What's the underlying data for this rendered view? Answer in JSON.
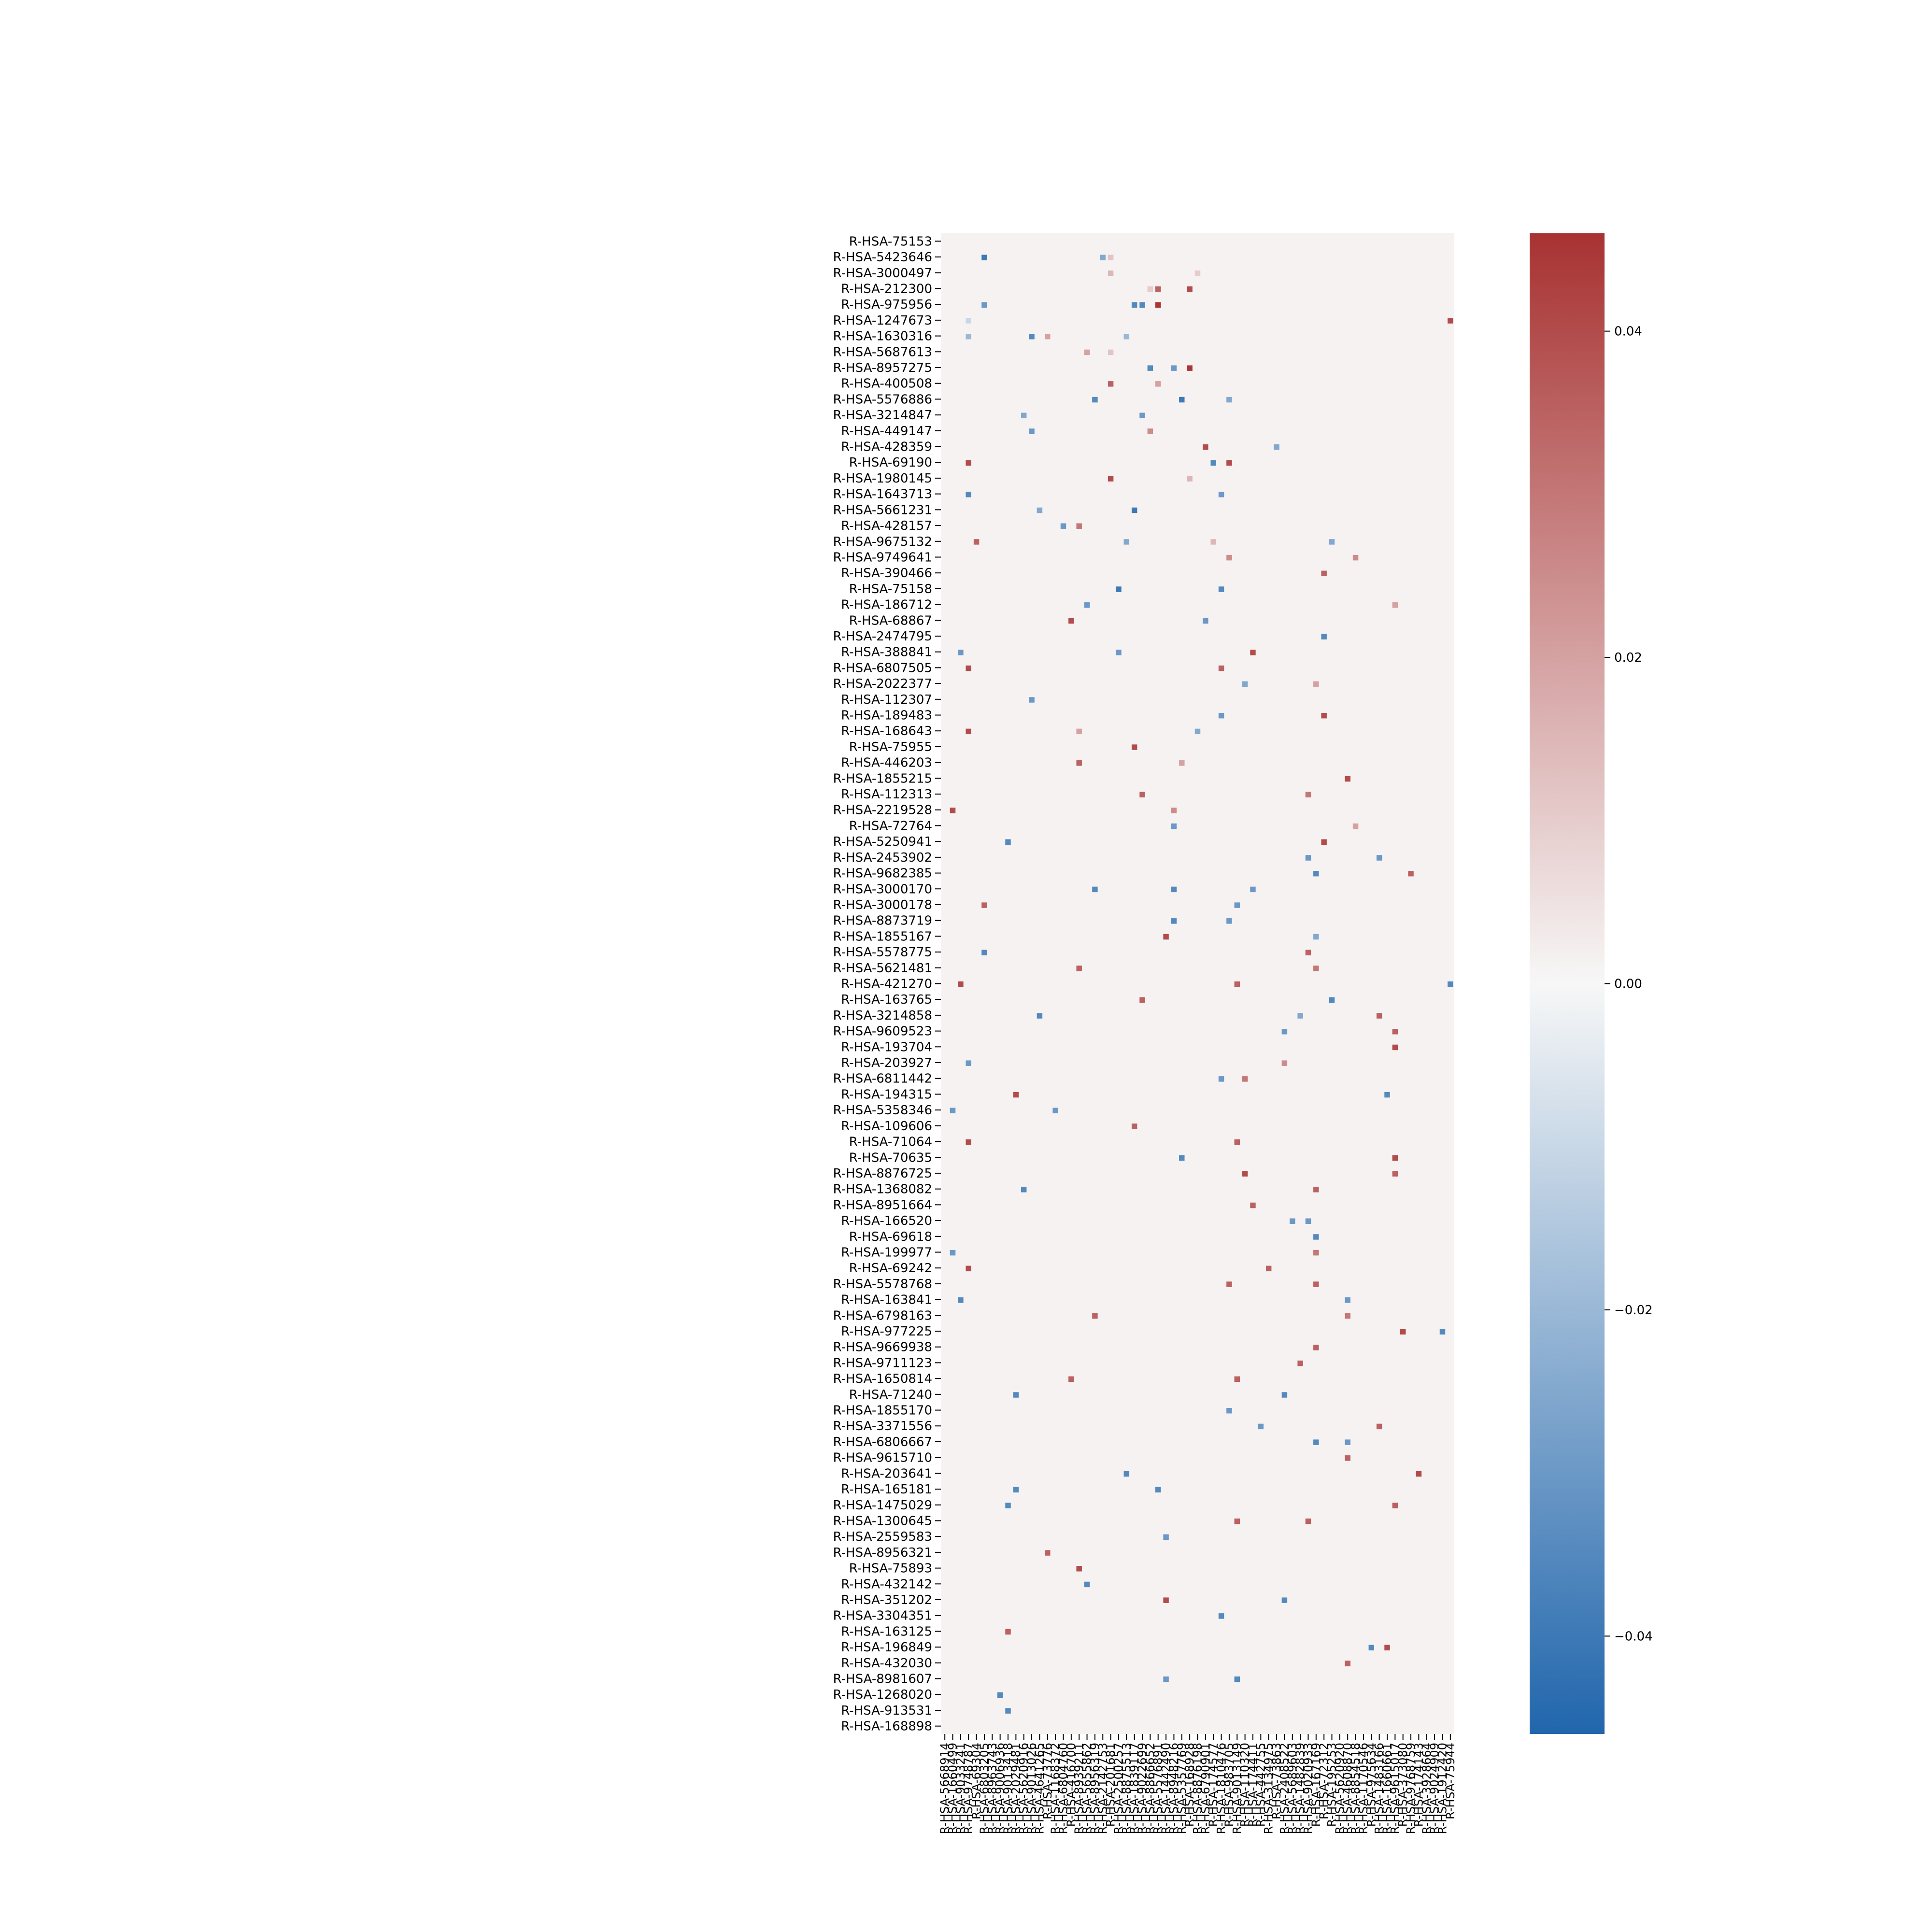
{
  "chart_data": {
    "type": "heatmap",
    "title": "",
    "xlabel": "",
    "ylabel": "",
    "colormap": [
      "#2166ac",
      "#f7f7f7",
      "#a83232"
    ],
    "background_color": "#f5f2f1",
    "vmin": -0.046,
    "vmax": 0.046,
    "colorbar": {
      "ticks": [
        0.04,
        0.02,
        0.0,
        -0.02,
        -0.04
      ],
      "tick_labels": [
        "0.04",
        "0.02",
        "0.00",
        "−0.02",
        "−0.04"
      ]
    },
    "rows": [
      "R-HSA-75153",
      "R-HSA-5423646",
      "R-HSA-3000497",
      "R-HSA-212300",
      "R-HSA-975956",
      "R-HSA-1247673",
      "R-HSA-1630316",
      "R-HSA-5687613",
      "R-HSA-8957275",
      "R-HSA-400508",
      "R-HSA-5576886",
      "R-HSA-3214847",
      "R-HSA-449147",
      "R-HSA-428359",
      "R-HSA-69190",
      "R-HSA-1980145",
      "R-HSA-1643713",
      "R-HSA-5661231",
      "R-HSA-428157",
      "R-HSA-9675132",
      "R-HSA-9749641",
      "R-HSA-390466",
      "R-HSA-75158",
      "R-HSA-186712",
      "R-HSA-68867",
      "R-HSA-2474795",
      "R-HSA-388841",
      "R-HSA-6807505",
      "R-HSA-2022377",
      "R-HSA-112307",
      "R-HSA-189483",
      "R-HSA-168643",
      "R-HSA-75955",
      "R-HSA-446203",
      "R-HSA-1855215",
      "R-HSA-112313",
      "R-HSA-2219528",
      "R-HSA-72764",
      "R-HSA-5250941",
      "R-HSA-2453902",
      "R-HSA-9682385",
      "R-HSA-3000170",
      "R-HSA-3000178",
      "R-HSA-8873719",
      "R-HSA-1855167",
      "R-HSA-5578775",
      "R-HSA-5621481",
      "R-HSA-421270",
      "R-HSA-163765",
      "R-HSA-3214858",
      "R-HSA-9609523",
      "R-HSA-193704",
      "R-HSA-203927",
      "R-HSA-6811442",
      "R-HSA-194315",
      "R-HSA-5358346",
      "R-HSA-109606",
      "R-HSA-71064",
      "R-HSA-70635",
      "R-HSA-8876725",
      "R-HSA-1368082",
      "R-HSA-8951664",
      "R-HSA-166520",
      "R-HSA-69618",
      "R-HSA-199977",
      "R-HSA-69242",
      "R-HSA-5578768",
      "R-HSA-163841",
      "R-HSA-6798163",
      "R-HSA-977225",
      "R-HSA-9669938",
      "R-HSA-9711123",
      "R-HSA-1650814",
      "R-HSA-71240",
      "R-HSA-1855170",
      "R-HSA-3371556",
      "R-HSA-6806667",
      "R-HSA-9615710",
      "R-HSA-203641",
      "R-HSA-165181",
      "R-HSA-1475029",
      "R-HSA-1300645",
      "R-HSA-2559583",
      "R-HSA-8956321",
      "R-HSA-75893",
      "R-HSA-432142",
      "R-HSA-351202",
      "R-HSA-3304351",
      "R-HSA-163125",
      "R-HSA-196849",
      "R-HSA-432030",
      "R-HSA-8981607",
      "R-HSA-1268020",
      "R-HSA-913531",
      "R-HSA-168898"
    ],
    "columns": [
      "R-HSA-5668914",
      "R-HSA-1660499",
      "R-HSA-9033241",
      "R-HSA-9748787",
      "R-HSA-69304",
      "R-HSA-6803205",
      "R-HSA-8963743",
      "R-HSA-9006936",
      "R-HSA-9013418",
      "R-HSA-2029481",
      "R-HSA-5620916",
      "R-HSA-9013026",
      "R-HSA-4641265",
      "R-HSA-73776",
      "R-HSA-1168372",
      "R-HSA-6804760",
      "R-HSA-416700",
      "R-HSA-8939211",
      "R-HSA-5655862",
      "R-HSA-8956319",
      "R-HSA-2142753",
      "R-HSA-201681",
      "R-HSA-2500257",
      "R-HSA-8875513",
      "R-HSA-1839117",
      "R-HSA-9022699",
      "R-HSA-8866652",
      "R-HSA-5576891",
      "R-HSA-1442490",
      "R-HSA-8948216",
      "R-HSA-5357769",
      "R-HSA-168928",
      "R-HSA-8876198",
      "R-HSA-6790901",
      "R-HSA-174577",
      "R-HSA-1810476",
      "R-HSA-983705",
      "R-HSA-9013149",
      "R-HSA-110320",
      "R-HSA-174411",
      "R-HSA-442755",
      "R-HSA-3134975",
      "R-HSA-73863",
      "R-HSA-2408522",
      "R-HSA-5689603",
      "R-HSA-1482839",
      "R-HSA-9020933",
      "R-HSA-167169",
      "R-HSA-72312",
      "R-HSA-195253",
      "R-HSA-5620920",
      "R-HSA-4608870",
      "R-HSA-8854518",
      "R-HSA-1170546",
      "R-HSA-975634",
      "R-HSA-1483166",
      "R-HSA-1660661",
      "R-HSA-9615017",
      "R-HSA-373080",
      "R-HSA-9768759",
      "R-HSA-174143",
      "R-HSA-3928664",
      "R-HSA-9024909",
      "R-HSA-1912420",
      "R-HSA-75944"
    ],
    "cells": [
      [
        1,
        5,
        -0.04
      ],
      [
        1,
        20,
        -0.025
      ],
      [
        1,
        21,
        0.012
      ],
      [
        2,
        21,
        0.015
      ],
      [
        2,
        32,
        0.01
      ],
      [
        3,
        31,
        0.04
      ],
      [
        3,
        27,
        0.035
      ],
      [
        3,
        26,
        0.01
      ],
      [
        4,
        5,
        -0.03
      ],
      [
        4,
        24,
        -0.035
      ],
      [
        4,
        25,
        -0.035
      ],
      [
        4,
        27,
        0.045
      ],
      [
        5,
        3,
        -0.01
      ],
      [
        5,
        64,
        0.04
      ],
      [
        6,
        11,
        -0.035
      ],
      [
        6,
        3,
        -0.02
      ],
      [
        6,
        13,
        0.02
      ],
      [
        6,
        23,
        -0.02
      ],
      [
        7,
        18,
        0.02
      ],
      [
        7,
        21,
        0.012
      ],
      [
        8,
        26,
        -0.035
      ],
      [
        8,
        29,
        -0.03
      ],
      [
        8,
        31,
        0.045
      ],
      [
        9,
        21,
        0.035
      ],
      [
        9,
        27,
        0.02
      ],
      [
        10,
        19,
        -0.035
      ],
      [
        10,
        30,
        -0.04
      ],
      [
        10,
        36,
        -0.025
      ],
      [
        11,
        10,
        -0.025
      ],
      [
        11,
        25,
        -0.03
      ],
      [
        12,
        11,
        -0.03
      ],
      [
        12,
        26,
        0.025
      ],
      [
        13,
        42,
        -0.025
      ],
      [
        13,
        33,
        0.04
      ],
      [
        14,
        3,
        0.04
      ],
      [
        14,
        34,
        -0.035
      ],
      [
        14,
        36,
        0.04
      ],
      [
        15,
        21,
        0.04
      ],
      [
        15,
        31,
        0.015
      ],
      [
        16,
        3,
        -0.035
      ],
      [
        16,
        35,
        -0.03
      ],
      [
        17,
        24,
        -0.04
      ],
      [
        17,
        12,
        -0.025
      ],
      [
        18,
        15,
        -0.03
      ],
      [
        18,
        17,
        0.03
      ],
      [
        19,
        4,
        0.035
      ],
      [
        19,
        23,
        -0.025
      ],
      [
        19,
        34,
        0.015
      ],
      [
        19,
        49,
        -0.025
      ],
      [
        20,
        36,
        0.025
      ],
      [
        20,
        52,
        0.025
      ],
      [
        21,
        48,
        0.035
      ],
      [
        22,
        22,
        -0.04
      ],
      [
        22,
        35,
        -0.035
      ],
      [
        23,
        18,
        -0.03
      ],
      [
        23,
        57,
        0.02
      ],
      [
        24,
        16,
        0.04
      ],
      [
        24,
        33,
        -0.03
      ],
      [
        25,
        48,
        -0.035
      ],
      [
        26,
        2,
        -0.03
      ],
      [
        26,
        22,
        -0.03
      ],
      [
        26,
        39,
        0.04
      ],
      [
        27,
        3,
        0.04
      ],
      [
        27,
        35,
        0.035
      ],
      [
        28,
        38,
        -0.025
      ],
      [
        28,
        47,
        0.02
      ],
      [
        29,
        11,
        -0.03
      ],
      [
        30,
        35,
        -0.03
      ],
      [
        30,
        48,
        0.04
      ],
      [
        31,
        3,
        0.04
      ],
      [
        31,
        17,
        0.02
      ],
      [
        31,
        32,
        -0.025
      ],
      [
        32,
        24,
        0.04
      ],
      [
        33,
        17,
        0.035
      ],
      [
        33,
        30,
        0.02
      ],
      [
        34,
        51,
        0.04
      ],
      [
        35,
        25,
        0.035
      ],
      [
        35,
        46,
        0.03
      ],
      [
        36,
        1,
        0.04
      ],
      [
        36,
        29,
        0.025
      ],
      [
        37,
        29,
        -0.03
      ],
      [
        37,
        52,
        0.02
      ],
      [
        38,
        8,
        -0.035
      ],
      [
        38,
        48,
        0.04
      ],
      [
        39,
        46,
        -0.03
      ],
      [
        39,
        55,
        -0.03
      ],
      [
        40,
        47,
        -0.035
      ],
      [
        40,
        59,
        0.035
      ],
      [
        41,
        19,
        -0.035
      ],
      [
        41,
        29,
        -0.035
      ],
      [
        41,
        39,
        -0.03
      ],
      [
        42,
        5,
        0.035
      ],
      [
        42,
        37,
        -0.03
      ],
      [
        43,
        29,
        -0.035
      ],
      [
        43,
        36,
        -0.03
      ],
      [
        44,
        28,
        0.04
      ],
      [
        44,
        47,
        -0.025
      ],
      [
        45,
        5,
        -0.035
      ],
      [
        45,
        46,
        0.035
      ],
      [
        46,
        17,
        0.035
      ],
      [
        46,
        47,
        0.03
      ],
      [
        47,
        2,
        0.04
      ],
      [
        47,
        37,
        0.035
      ],
      [
        47,
        64,
        -0.035
      ],
      [
        48,
        25,
        0.035
      ],
      [
        48,
        49,
        -0.035
      ],
      [
        49,
        12,
        -0.035
      ],
      [
        49,
        45,
        -0.025
      ],
      [
        49,
        55,
        0.035
      ],
      [
        50,
        43,
        -0.03
      ],
      [
        50,
        57,
        0.035
      ],
      [
        51,
        57,
        0.04
      ],
      [
        52,
        3,
        -0.03
      ],
      [
        52,
        43,
        0.025
      ],
      [
        53,
        35,
        -0.03
      ],
      [
        53,
        38,
        0.03
      ],
      [
        54,
        9,
        0.04
      ],
      [
        54,
        56,
        -0.035
      ],
      [
        55,
        1,
        -0.03
      ],
      [
        55,
        14,
        -0.03
      ],
      [
        56,
        24,
        0.035
      ],
      [
        57,
        3,
        0.04
      ],
      [
        57,
        37,
        0.035
      ],
      [
        58,
        30,
        -0.035
      ],
      [
        58,
        57,
        0.04
      ],
      [
        59,
        38,
        0.04
      ],
      [
        59,
        57,
        0.035
      ],
      [
        60,
        10,
        -0.035
      ],
      [
        60,
        47,
        0.035
      ],
      [
        61,
        39,
        0.035
      ],
      [
        62,
        46,
        -0.03
      ],
      [
        62,
        44,
        -0.03
      ],
      [
        63,
        47,
        -0.035
      ],
      [
        64,
        1,
        -0.03
      ],
      [
        64,
        47,
        0.03
      ],
      [
        65,
        3,
        0.04
      ],
      [
        65,
        41,
        0.035
      ],
      [
        66,
        36,
        0.035
      ],
      [
        66,
        47,
        0.035
      ],
      [
        67,
        2,
        -0.035
      ],
      [
        67,
        51,
        -0.03
      ],
      [
        68,
        19,
        0.035
      ],
      [
        68,
        51,
        0.03
      ],
      [
        69,
        58,
        0.04
      ],
      [
        69,
        63,
        -0.035
      ],
      [
        70,
        47,
        0.035
      ],
      [
        71,
        45,
        0.035
      ],
      [
        72,
        16,
        0.035
      ],
      [
        72,
        37,
        0.035
      ],
      [
        73,
        9,
        -0.035
      ],
      [
        73,
        43,
        -0.035
      ],
      [
        74,
        36,
        -0.03
      ],
      [
        75,
        40,
        -0.03
      ],
      [
        75,
        55,
        0.035
      ],
      [
        76,
        47,
        -0.035
      ],
      [
        76,
        51,
        -0.03
      ],
      [
        77,
        51,
        0.035
      ],
      [
        78,
        23,
        -0.035
      ],
      [
        78,
        60,
        0.04
      ],
      [
        79,
        9,
        -0.035
      ],
      [
        79,
        27,
        -0.035
      ],
      [
        80,
        8,
        -0.035
      ],
      [
        80,
        57,
        0.035
      ],
      [
        81,
        37,
        0.035
      ],
      [
        81,
        46,
        0.035
      ],
      [
        82,
        28,
        -0.03
      ],
      [
        83,
        13,
        0.035
      ],
      [
        84,
        17,
        0.04
      ],
      [
        85,
        18,
        -0.035
      ],
      [
        86,
        28,
        0.04
      ],
      [
        86,
        43,
        -0.035
      ],
      [
        87,
        35,
        -0.035
      ],
      [
        88,
        8,
        0.035
      ],
      [
        89,
        56,
        0.04
      ],
      [
        89,
        54,
        -0.035
      ],
      [
        90,
        51,
        0.035
      ],
      [
        91,
        37,
        -0.035
      ],
      [
        91,
        28,
        -0.03
      ],
      [
        92,
        7,
        -0.035
      ],
      [
        93,
        8,
        -0.035
      ]
    ]
  }
}
